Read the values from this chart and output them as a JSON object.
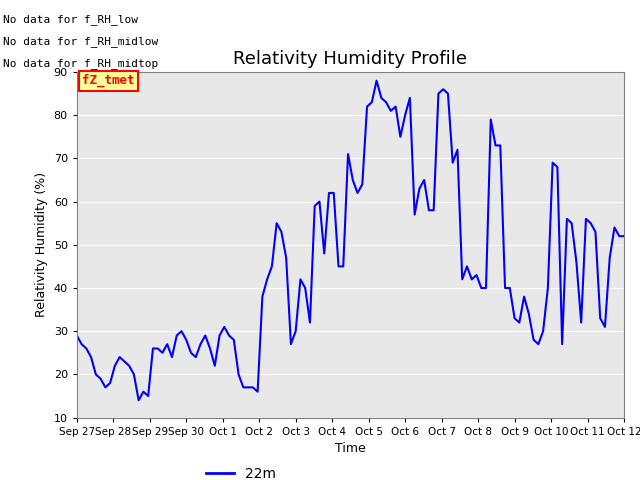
{
  "title": "Relativity Humidity Profile",
  "xlabel": "Time",
  "ylabel": "Relativity Humidity (%)",
  "ylim": [
    10,
    90
  ],
  "yticks": [
    10,
    20,
    30,
    40,
    50,
    60,
    70,
    80,
    90
  ],
  "line_color": "blue",
  "line_width": 1.5,
  "bg_color": "#e8e8e8",
  "legend_label": "22m",
  "legend_color": "blue",
  "annotations": [
    "No data for f_RH_low",
    "No data for f_RH_midlow",
    "No data for f_RH_midtop"
  ],
  "legend_box_color": "#ffff99",
  "legend_box_edge": "red",
  "legend_box_text": "fZ_tmet",
  "xtick_labels": [
    "Sep 27",
    "Sep 28",
    "Sep 29",
    "Sep 30",
    "Oct 1",
    "Oct 2",
    "Oct 3",
    "Oct 4",
    "Oct 5",
    "Oct 6",
    "Oct 7",
    "Oct 8",
    "Oct 9",
    "Oct 10",
    "Oct 11",
    "Oct 12"
  ],
  "x_values": [
    0,
    1,
    2,
    3,
    4,
    5,
    6,
    7,
    8,
    9,
    10,
    11,
    12,
    13,
    14,
    15,
    16,
    17,
    18,
    19,
    20,
    21,
    22,
    23,
    24,
    25,
    26,
    27,
    28,
    29,
    30,
    31,
    32,
    33,
    34,
    35,
    36,
    37,
    38,
    39,
    40,
    41,
    42,
    43,
    44,
    45,
    46,
    47,
    48,
    49,
    50,
    51,
    52,
    53,
    54,
    55,
    56,
    57,
    58,
    59,
    60,
    61,
    62,
    63,
    64,
    65,
    66,
    67,
    68,
    69,
    70,
    71,
    72,
    73,
    74,
    75,
    76,
    77,
    78,
    79,
    80,
    81,
    82,
    83,
    84,
    85,
    86,
    87,
    88,
    89,
    90,
    91,
    92,
    93,
    94,
    95,
    96,
    97,
    98,
    99,
    100,
    101,
    102,
    103,
    104,
    105,
    106,
    107,
    108,
    109,
    110,
    111,
    112,
    113,
    114,
    115
  ],
  "y_values": [
    29,
    27,
    26,
    24,
    20,
    19,
    17,
    18,
    22,
    24,
    23,
    22,
    20,
    14,
    16,
    15,
    26,
    26,
    25,
    27,
    24,
    29,
    30,
    28,
    25,
    24,
    27,
    29,
    26,
    22,
    29,
    31,
    29,
    28,
    20,
    17,
    17,
    17,
    16,
    38,
    42,
    45,
    55,
    53,
    47,
    27,
    30,
    42,
    40,
    32,
    59,
    60,
    48,
    62,
    62,
    45,
    45,
    71,
    65,
    62,
    64,
    82,
    83,
    88,
    84,
    83,
    81,
    82,
    75,
    80,
    84,
    57,
    63,
    65,
    58,
    58,
    85,
    86,
    85,
    69,
    72,
    42,
    45,
    42,
    43,
    40,
    40,
    79,
    73,
    73,
    40,
    40,
    33,
    32,
    38,
    34,
    28,
    27,
    30,
    40,
    69,
    68,
    27,
    56,
    55,
    46,
    32,
    56,
    55,
    53,
    33,
    31,
    47,
    54,
    52,
    52
  ]
}
